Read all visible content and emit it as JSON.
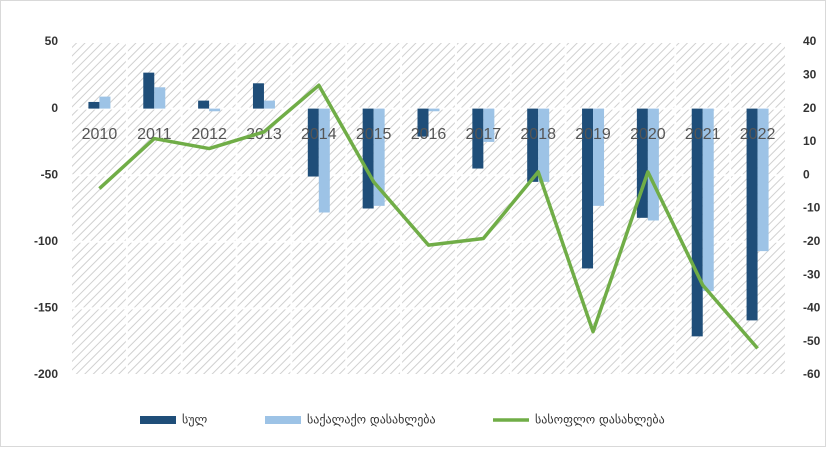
{
  "chart_data": {
    "type": "bar_line",
    "categories": [
      "2010",
      "2011",
      "2012",
      "2013",
      "2014",
      "2015",
      "2016",
      "2017",
      "2018",
      "2019",
      "2020",
      "2021",
      "2022"
    ],
    "series": [
      {
        "name": "სულ",
        "color": "#1f4e79",
        "type": "bar",
        "values": [
          5,
          27,
          6,
          19,
          -51,
          -75,
          -21,
          -45,
          -55,
          -120,
          -82,
          -171,
          -159
        ]
      },
      {
        "name": "საქალაქო დასახლება",
        "color": "#9dc3e6",
        "type": "bar",
        "values": [
          9,
          16,
          -2,
          6,
          -78,
          -73,
          -2,
          -25,
          -55,
          -73,
          -84,
          -137,
          -107
        ]
      },
      {
        "name": "სასოფლო დასახლება",
        "color": "#70ad47",
        "type": "line",
        "axis": "y2",
        "values": [
          -4,
          11,
          8,
          13,
          27,
          -2,
          -21,
          -19,
          1,
          -47,
          1,
          -33,
          -52
        ]
      }
    ],
    "ylim": [
      -200,
      50
    ],
    "yticks": [
      -200,
      -150,
      -100,
      -50,
      0,
      50
    ],
    "y2lim": [
      -60,
      40
    ],
    "y2ticks": [
      -60,
      -50,
      -40,
      -30,
      -20,
      -10,
      0,
      10,
      20,
      30,
      40
    ],
    "grid": true,
    "legend": "bottom"
  }
}
